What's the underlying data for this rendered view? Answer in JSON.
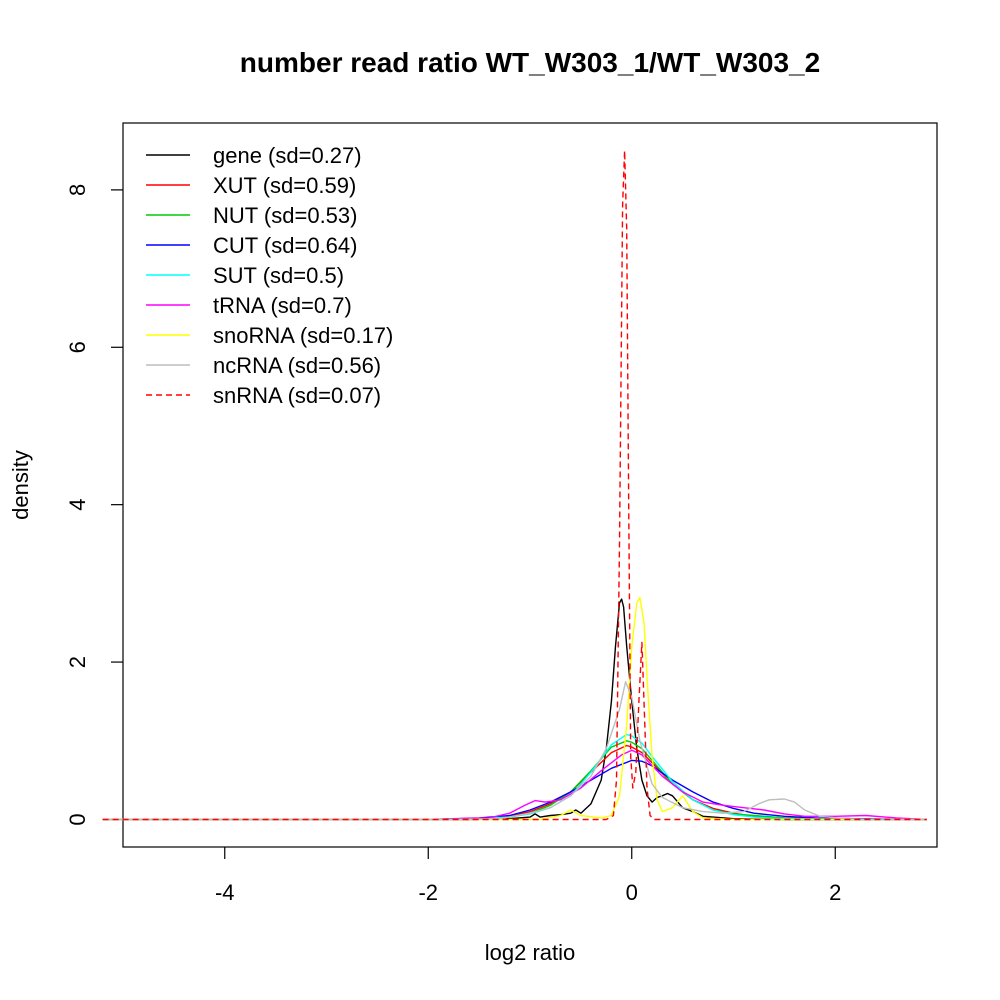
{
  "chart_data": {
    "type": "line",
    "title": "number read ratio WT_W303_1/WT_W303_2",
    "xlabel": "log2 ratio",
    "ylabel": "density",
    "xlim": [
      -5.0,
      3.0
    ],
    "ylim": [
      -0.35,
      8.85
    ],
    "xticks": [
      -4,
      -2,
      0,
      2
    ],
    "yticks": [
      0,
      2,
      4,
      6,
      8
    ],
    "xtick_labels": [
      "-4",
      "-2",
      "0",
      "2"
    ],
    "ytick_labels": [
      "0",
      "2",
      "4",
      "6",
      "8"
    ],
    "grid": false,
    "legend_position": "top-left",
    "series": [
      {
        "name": "gene (sd=0.27)",
        "color": "#000000",
        "dash": false,
        "points": [
          [
            -5.2,
            0
          ],
          [
            -1.6,
            0
          ],
          [
            -1.2,
            0.01
          ],
          [
            -1.0,
            0.03
          ],
          [
            -0.95,
            0.07
          ],
          [
            -0.9,
            0.03
          ],
          [
            -0.8,
            0.05
          ],
          [
            -0.7,
            0.06
          ],
          [
            -0.6,
            0.08
          ],
          [
            -0.55,
            0.12
          ],
          [
            -0.5,
            0.08
          ],
          [
            -0.4,
            0.2
          ],
          [
            -0.3,
            0.5
          ],
          [
            -0.25,
            0.9
          ],
          [
            -0.2,
            1.5
          ],
          [
            -0.16,
            2.2
          ],
          [
            -0.12,
            2.75
          ],
          [
            -0.1,
            2.8
          ],
          [
            -0.08,
            2.7
          ],
          [
            -0.05,
            2.2
          ],
          [
            0.0,
            1.5
          ],
          [
            0.05,
            0.9
          ],
          [
            0.1,
            0.5
          ],
          [
            0.15,
            0.3
          ],
          [
            0.2,
            0.22
          ],
          [
            0.25,
            0.28
          ],
          [
            0.3,
            0.3
          ],
          [
            0.35,
            0.33
          ],
          [
            0.4,
            0.3
          ],
          [
            0.5,
            0.15
          ],
          [
            0.6,
            0.1
          ],
          [
            0.7,
            0.04
          ],
          [
            0.8,
            0.03
          ],
          [
            1.0,
            0.01
          ],
          [
            1.2,
            0.005
          ],
          [
            1.5,
            0
          ],
          [
            2.9,
            0
          ]
        ]
      },
      {
        "name": "XUT (sd=0.59)",
        "color": "#ff0000",
        "dash": false,
        "points": [
          [
            -5.2,
            0
          ],
          [
            -2.0,
            0
          ],
          [
            -1.5,
            0.01
          ],
          [
            -1.2,
            0.04
          ],
          [
            -1.0,
            0.1
          ],
          [
            -0.8,
            0.2
          ],
          [
            -0.6,
            0.35
          ],
          [
            -0.4,
            0.6
          ],
          [
            -0.2,
            0.85
          ],
          [
            -0.05,
            0.94
          ],
          [
            0.0,
            0.92
          ],
          [
            0.1,
            0.85
          ],
          [
            0.2,
            0.72
          ],
          [
            0.4,
            0.45
          ],
          [
            0.6,
            0.25
          ],
          [
            0.8,
            0.14
          ],
          [
            1.0,
            0.08
          ],
          [
            1.2,
            0.04
          ],
          [
            1.5,
            0.02
          ],
          [
            1.8,
            0.01
          ],
          [
            2.2,
            0.005
          ],
          [
            2.9,
            0
          ]
        ]
      },
      {
        "name": "NUT (sd=0.53)",
        "color": "#00cc00",
        "dash": false,
        "points": [
          [
            -5.2,
            0
          ],
          [
            -2.0,
            0
          ],
          [
            -1.5,
            0.01
          ],
          [
            -1.2,
            0.03
          ],
          [
            -1.0,
            0.08
          ],
          [
            -0.8,
            0.18
          ],
          [
            -0.6,
            0.35
          ],
          [
            -0.4,
            0.62
          ],
          [
            -0.2,
            0.92
          ],
          [
            -0.05,
            1.0
          ],
          [
            0.0,
            0.98
          ],
          [
            0.1,
            0.9
          ],
          [
            0.2,
            0.75
          ],
          [
            0.4,
            0.45
          ],
          [
            0.6,
            0.25
          ],
          [
            0.8,
            0.12
          ],
          [
            1.0,
            0.07
          ],
          [
            1.2,
            0.05
          ],
          [
            1.5,
            0.02
          ],
          [
            1.8,
            0.01
          ],
          [
            2.9,
            0
          ]
        ]
      },
      {
        "name": "CUT (sd=0.64)",
        "color": "#0000ff",
        "dash": false,
        "points": [
          [
            -5.2,
            0
          ],
          [
            -2.0,
            0
          ],
          [
            -1.5,
            0.02
          ],
          [
            -1.2,
            0.05
          ],
          [
            -1.0,
            0.12
          ],
          [
            -0.8,
            0.22
          ],
          [
            -0.6,
            0.35
          ],
          [
            -0.4,
            0.5
          ],
          [
            -0.2,
            0.65
          ],
          [
            0.0,
            0.75
          ],
          [
            0.1,
            0.74
          ],
          [
            0.2,
            0.68
          ],
          [
            0.4,
            0.5
          ],
          [
            0.6,
            0.35
          ],
          [
            0.8,
            0.22
          ],
          [
            1.0,
            0.14
          ],
          [
            1.2,
            0.08
          ],
          [
            1.5,
            0.04
          ],
          [
            1.8,
            0.02
          ],
          [
            2.2,
            0.01
          ],
          [
            2.9,
            0
          ]
        ]
      },
      {
        "name": "SUT (sd=0.5)",
        "color": "#00ffff",
        "dash": false,
        "points": [
          [
            -5.2,
            0
          ],
          [
            -2.0,
            0
          ],
          [
            -1.5,
            0.01
          ],
          [
            -1.2,
            0.03
          ],
          [
            -1.0,
            0.07
          ],
          [
            -0.8,
            0.15
          ],
          [
            -0.6,
            0.3
          ],
          [
            -0.4,
            0.6
          ],
          [
            -0.2,
            0.95
          ],
          [
            -0.05,
            1.08
          ],
          [
            0.0,
            1.06
          ],
          [
            0.1,
            0.97
          ],
          [
            0.2,
            0.8
          ],
          [
            0.4,
            0.48
          ],
          [
            0.6,
            0.25
          ],
          [
            0.8,
            0.12
          ],
          [
            1.0,
            0.06
          ],
          [
            1.2,
            0.03
          ],
          [
            1.5,
            0.01
          ],
          [
            2.9,
            0
          ]
        ]
      },
      {
        "name": "tRNA (sd=0.7)",
        "color": "#ff00ff",
        "dash": false,
        "points": [
          [
            -5.2,
            0
          ],
          [
            -2.0,
            0
          ],
          [
            -1.4,
            0.02
          ],
          [
            -1.2,
            0.08
          ],
          [
            -1.05,
            0.18
          ],
          [
            -0.95,
            0.24
          ],
          [
            -0.85,
            0.22
          ],
          [
            -0.7,
            0.25
          ],
          [
            -0.5,
            0.4
          ],
          [
            -0.3,
            0.62
          ],
          [
            -0.1,
            0.82
          ],
          [
            0.0,
            0.88
          ],
          [
            0.1,
            0.82
          ],
          [
            0.3,
            0.55
          ],
          [
            0.5,
            0.35
          ],
          [
            0.7,
            0.22
          ],
          [
            0.9,
            0.18
          ],
          [
            1.1,
            0.15
          ],
          [
            1.3,
            0.12
          ],
          [
            1.5,
            0.07
          ],
          [
            1.7,
            0.04
          ],
          [
            2.0,
            0.04
          ],
          [
            2.3,
            0.05
          ],
          [
            2.6,
            0.02
          ],
          [
            2.9,
            0
          ]
        ]
      },
      {
        "name": "snoRNA (sd=0.17)",
        "color": "#ffff00",
        "dash": false,
        "points": [
          [
            -5.2,
            0
          ],
          [
            -0.9,
            0
          ],
          [
            -0.7,
            0.05
          ],
          [
            -0.6,
            0.12
          ],
          [
            -0.5,
            0.05
          ],
          [
            -0.3,
            0.02
          ],
          [
            -0.2,
            0.05
          ],
          [
            -0.12,
            0.3
          ],
          [
            -0.05,
            1.2
          ],
          [
            0.0,
            2.2
          ],
          [
            0.05,
            2.75
          ],
          [
            0.08,
            2.82
          ],
          [
            0.12,
            2.5
          ],
          [
            0.16,
            1.6
          ],
          [
            0.2,
            0.8
          ],
          [
            0.25,
            0.25
          ],
          [
            0.3,
            0.1
          ],
          [
            0.4,
            0.15
          ],
          [
            0.5,
            0.3
          ],
          [
            0.6,
            0.1
          ],
          [
            0.7,
            0.02
          ],
          [
            1.0,
            0
          ],
          [
            2.9,
            0
          ]
        ]
      },
      {
        "name": "ncRNA (sd=0.56)",
        "color": "#bebebe",
        "dash": false,
        "points": [
          [
            -5.2,
            0
          ],
          [
            -1.8,
            0
          ],
          [
            -1.3,
            0.01
          ],
          [
            -1.0,
            0.08
          ],
          [
            -0.8,
            0.15
          ],
          [
            -0.6,
            0.3
          ],
          [
            -0.4,
            0.55
          ],
          [
            -0.25,
            0.9
          ],
          [
            -0.12,
            1.4
          ],
          [
            -0.06,
            1.75
          ],
          [
            0.0,
            1.55
          ],
          [
            0.08,
            1.0
          ],
          [
            0.2,
            0.45
          ],
          [
            0.3,
            0.28
          ],
          [
            0.5,
            0.15
          ],
          [
            0.7,
            0.1
          ],
          [
            0.9,
            0.08
          ],
          [
            1.1,
            0.1
          ],
          [
            1.25,
            0.2
          ],
          [
            1.35,
            0.25
          ],
          [
            1.5,
            0.26
          ],
          [
            1.6,
            0.22
          ],
          [
            1.7,
            0.12
          ],
          [
            1.85,
            0.04
          ],
          [
            2.1,
            0.01
          ],
          [
            2.4,
            0
          ],
          [
            2.9,
            0
          ]
        ]
      },
      {
        "name": "snRNA (sd=0.07)",
        "color": "#ff0000",
        "dash": true,
        "points": [
          [
            -5.2,
            0
          ],
          [
            -0.25,
            0
          ],
          [
            -0.18,
            0.05
          ],
          [
            -0.15,
            0.5
          ],
          [
            -0.12,
            3.5
          ],
          [
            -0.09,
            7.8
          ],
          [
            -0.07,
            8.5
          ],
          [
            -0.05,
            7.5
          ],
          [
            -0.03,
            4.0
          ],
          [
            -0.01,
            0.8
          ],
          [
            0.01,
            0.4
          ],
          [
            0.04,
            0.6
          ],
          [
            0.07,
            1.5
          ],
          [
            0.1,
            2.25
          ],
          [
            0.12,
            1.5
          ],
          [
            0.15,
            0.4
          ],
          [
            0.18,
            0.05
          ],
          [
            0.22,
            0
          ],
          [
            2.9,
            0
          ]
        ]
      }
    ]
  }
}
